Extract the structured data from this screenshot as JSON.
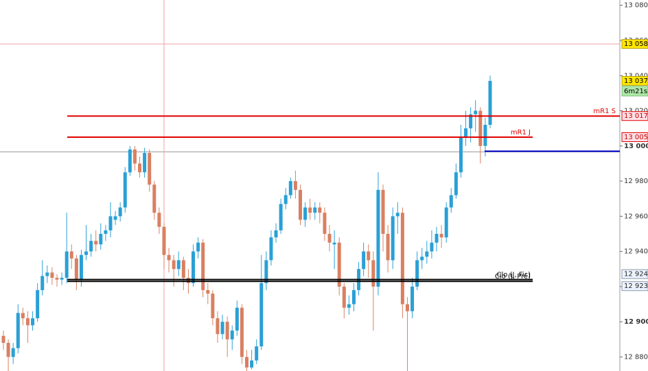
{
  "chart_data": {
    "type": "candlestick",
    "ylim": [
      12872,
      13083
    ],
    "yticks": [
      {
        "value": 13080,
        "label": "13 080"
      },
      {
        "value": 13060,
        "label": "13 060"
      },
      {
        "value": 13040,
        "label": "13 040"
      },
      {
        "value": 13020,
        "label": "13 020"
      },
      {
        "value": 13000,
        "label": "13 000"
      },
      {
        "value": 12980,
        "label": "12 980"
      },
      {
        "value": 12960,
        "label": "12 960"
      },
      {
        "value": 12940,
        "label": "12 940"
      },
      {
        "value": 12920,
        "label": "12 920"
      },
      {
        "value": 12900,
        "label": "12 900"
      },
      {
        "value": 12880,
        "label": "12 880"
      }
    ],
    "up_color": "#2aa0d6",
    "down_color": "#d98062",
    "open": [
      12892,
      12888,
      12880,
      12885,
      12905,
      12902,
      12898,
      12902,
      12918,
      12926,
      12928,
      12925,
      12924,
      12925,
      12940,
      12936,
      12924,
      12938,
      12940,
      12946,
      12944,
      12950,
      12952,
      12958,
      12960,
      12965,
      12985,
      12998,
      12990,
      12985,
      12996,
      12978,
      12962,
      12954,
      12938,
      12935,
      12930,
      12935,
      12925,
      12922,
      12940,
      12945,
      12918,
      12916,
      12902,
      12893,
      12900,
      12890,
      12895,
      12908,
      12880,
      12874,
      12878,
      12886,
      12922,
      12935,
      12948,
      12952,
      12967,
      12972,
      12980,
      12975,
      12958,
      12965,
      12962,
      12965,
      12962,
      12950,
      12944,
      12945,
      12920,
      12908,
      12910,
      12918,
      12930,
      12940,
      12935,
      12920,
      12975,
      12950,
      12935,
      12960,
      12962,
      12910,
      12906,
      12920,
      12935,
      12937,
      12940,
      12945,
      12950,
      12948,
      12965,
      12972,
      12985,
      13005,
      13010,
      13018,
      13020,
      13000,
      13012
    ],
    "high": [
      12895,
      12890,
      12888,
      12910,
      12908,
      12906,
      12906,
      12922,
      12935,
      12932,
      12931,
      12927,
      12928,
      12962,
      12944,
      12938,
      12941,
      12955,
      12950,
      12952,
      12956,
      12955,
      12968,
      12963,
      12968,
      12988,
      13000,
      13000,
      12994,
      12999,
      12998,
      12980,
      12965,
      12956,
      12942,
      12938,
      12940,
      12937,
      12930,
      12944,
      12948,
      12947,
      12922,
      12918,
      12906,
      12904,
      12903,
      12898,
      12912,
      12910,
      12884,
      12884,
      12890,
      12938,
      12940,
      12952,
      12956,
      12970,
      12976,
      12982,
      12986,
      12978,
      12968,
      12970,
      12968,
      12968,
      12965,
      12955,
      12952,
      12948,
      12922,
      12915,
      12922,
      12934,
      12945,
      12944,
      12940,
      12985,
      12978,
      12955,
      12965,
      12968,
      12965,
      12914,
      12925,
      12940,
      12942,
      12946,
      12952,
      12954,
      12955,
      12968,
      12976,
      12990,
      13012,
      13020,
      13022,
      13026,
      13022,
      13016,
      13040
    ],
    "low": [
      12884,
      12872,
      12876,
      12882,
      12898,
      12888,
      12895,
      12900,
      12915,
      12922,
      12921,
      12920,
      12921,
      12922,
      12930,
      12918,
      12920,
      12935,
      12937,
      12940,
      12941,
      12946,
      12948,
      12955,
      12957,
      12962,
      12983,
      12986,
      12982,
      12982,
      12974,
      12958,
      12950,
      12930,
      12928,
      12920,
      12926,
      12918,
      12916,
      12920,
      12936,
      12914,
      12910,
      12898,
      12888,
      12890,
      12880,
      12884,
      12892,
      12876,
      12872,
      12873,
      12876,
      12884,
      12918,
      12932,
      12945,
      12950,
      12964,
      12970,
      12970,
      12955,
      12954,
      12958,
      12958,
      12956,
      12946,
      12940,
      12930,
      12915,
      12902,
      12904,
      12906,
      12915,
      12926,
      12925,
      12895,
      12915,
      12940,
      12928,
      12930,
      12950,
      12902,
      12872,
      12902,
      12918,
      12930,
      12933,
      12936,
      12940,
      12942,
      12945,
      12962,
      12970,
      12982,
      13000,
      13002,
      13008,
      12990,
      12994,
      13010
    ],
    "close": [
      12888,
      12880,
      12885,
      12905,
      12902,
      12898,
      12902,
      12918,
      12926,
      12928,
      12925,
      12924,
      12925,
      12940,
      12936,
      12924,
      12938,
      12940,
      12946,
      12944,
      12950,
      12952,
      12960,
      12960,
      12965,
      12985,
      12998,
      12990,
      12985,
      12996,
      12978,
      12962,
      12954,
      12938,
      12935,
      12930,
      12935,
      12925,
      12922,
      12940,
      12945,
      12918,
      12916,
      12902,
      12893,
      12900,
      12890,
      12895,
      12908,
      12880,
      12874,
      12878,
      12886,
      12922,
      12935,
      12948,
      12952,
      12967,
      12972,
      12980,
      12975,
      12958,
      12965,
      12962,
      12965,
      12962,
      12950,
      12945,
      12945,
      12920,
      12908,
      12910,
      12918,
      12930,
      12940,
      12935,
      12920,
      12975,
      12950,
      12935,
      12960,
      12962,
      12910,
      12906,
      12920,
      12935,
      12937,
      12940,
      12945,
      12950,
      12948,
      12965,
      12972,
      12985,
      13005,
      13010,
      13018,
      13020,
      13000,
      13012,
      13037
    ],
    "levels": [
      {
        "label": "mR1 S",
        "value": 13017,
        "tag": "13 017,",
        "color": "#e00000"
      },
      {
        "label": "mR1 J",
        "value": 13005,
        "tag": "13 005,",
        "color": "#e00000"
      },
      {
        "label": "Clo (J, Fic)",
        "value": 12924,
        "tag": "12 924,",
        "color": "#000000"
      },
      {
        "label": "Clo (J, Pré)",
        "value": 12923,
        "tag": "12 923,",
        "color": "#000000"
      }
    ],
    "support_line": {
      "value": 12997,
      "color": "#0000cc"
    },
    "reference_line": {
      "value": 12997,
      "color": "#999999"
    },
    "crosshair": {
      "index": 33,
      "value": 13058,
      "label": "13 058,",
      "color": "#f4a0a8"
    },
    "last_price": {
      "value": 13037,
      "label": "13 037,"
    },
    "timer": "6m21s"
  }
}
